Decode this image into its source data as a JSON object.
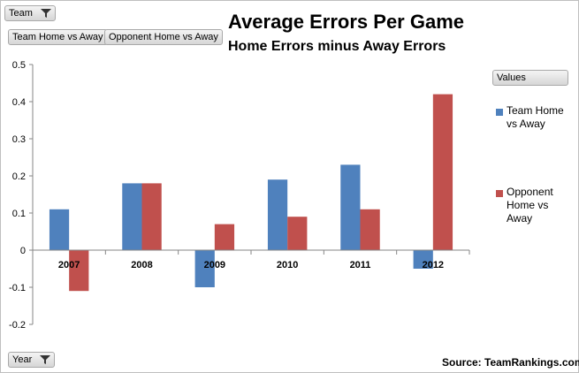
{
  "filters": {
    "team_button": "Team",
    "team_home_vs_away_button": "Team Home vs Away",
    "opponent_home_vs_away_button": "Opponent Home vs Away",
    "values_button": "Values",
    "year_button": "Year"
  },
  "source": "Source: TeamRankings.com",
  "colors": {
    "team": "#4f81bd",
    "opponent": "#c0504d"
  },
  "chart_data": {
    "type": "bar",
    "title": "Average Errors Per Game",
    "subtitle": "Home Errors minus Away Errors",
    "categories": [
      "2007",
      "2008",
      "2009",
      "2010",
      "2011",
      "2012"
    ],
    "series": [
      {
        "name": "Team Home vs Away",
        "values": [
          0.11,
          0.18,
          -0.1,
          0.19,
          0.23,
          -0.05
        ]
      },
      {
        "name": "Opponent Home vs Away",
        "values": [
          -0.11,
          0.18,
          0.07,
          0.09,
          0.11,
          0.42
        ]
      }
    ],
    "yticks": [
      "0.5",
      "0.4",
      "0.3",
      "0.2",
      "0.1",
      "0",
      "-0.1",
      "-0.2"
    ],
    "ylim": [
      -0.2,
      0.5
    ],
    "grid": false,
    "legend_position": "right"
  }
}
